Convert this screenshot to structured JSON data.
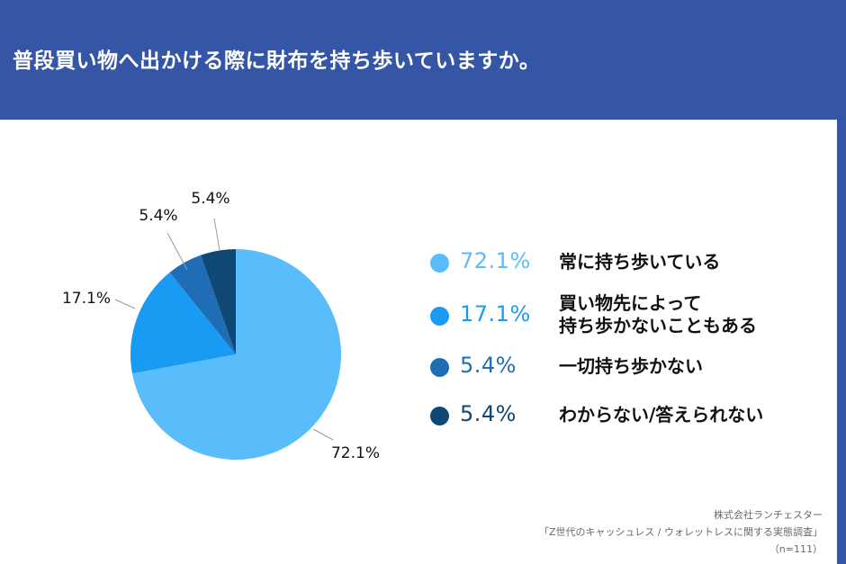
{
  "title": "普段買い物へ出かける際に財布を持ち歩いていますか。",
  "chart_data": {
    "type": "pie",
    "categories": [
      "常に持ち歩いている",
      "買い物先によって持ち歩かないこともある",
      "一切持ち歩かない",
      "わからない/答えられない"
    ],
    "values": [
      72.1,
      17.1,
      5.4,
      5.4
    ],
    "value_labels": [
      "72.1%",
      "17.1%",
      "5.4%",
      "5.4%"
    ],
    "colors": [
      "#59bdfb",
      "#1a9bf3",
      "#1f6eb5",
      "#0f4775"
    ],
    "legend_placement": "right"
  },
  "legend": [
    {
      "value": "72.1%",
      "lines": [
        "常に持ち歩いている"
      ],
      "color": "#59bdfb"
    },
    {
      "value": "17.1%",
      "lines": [
        "買い物先によって",
        "持ち歩かないこともある"
      ],
      "color": "#1a9bf3"
    },
    {
      "value": "5.4%",
      "lines": [
        "一切持ち歩かない"
      ],
      "color": "#1f6eb5"
    },
    {
      "value": "5.4%",
      "lines": [
        "わからない/答えられない"
      ],
      "color": "#0f4775"
    }
  ],
  "source": {
    "company": "株式会社ランチェスター",
    "survey": "「Z世代のキャッシュレス / ウォレットレスに関する実態調査」",
    "sample": "（n=111）"
  }
}
